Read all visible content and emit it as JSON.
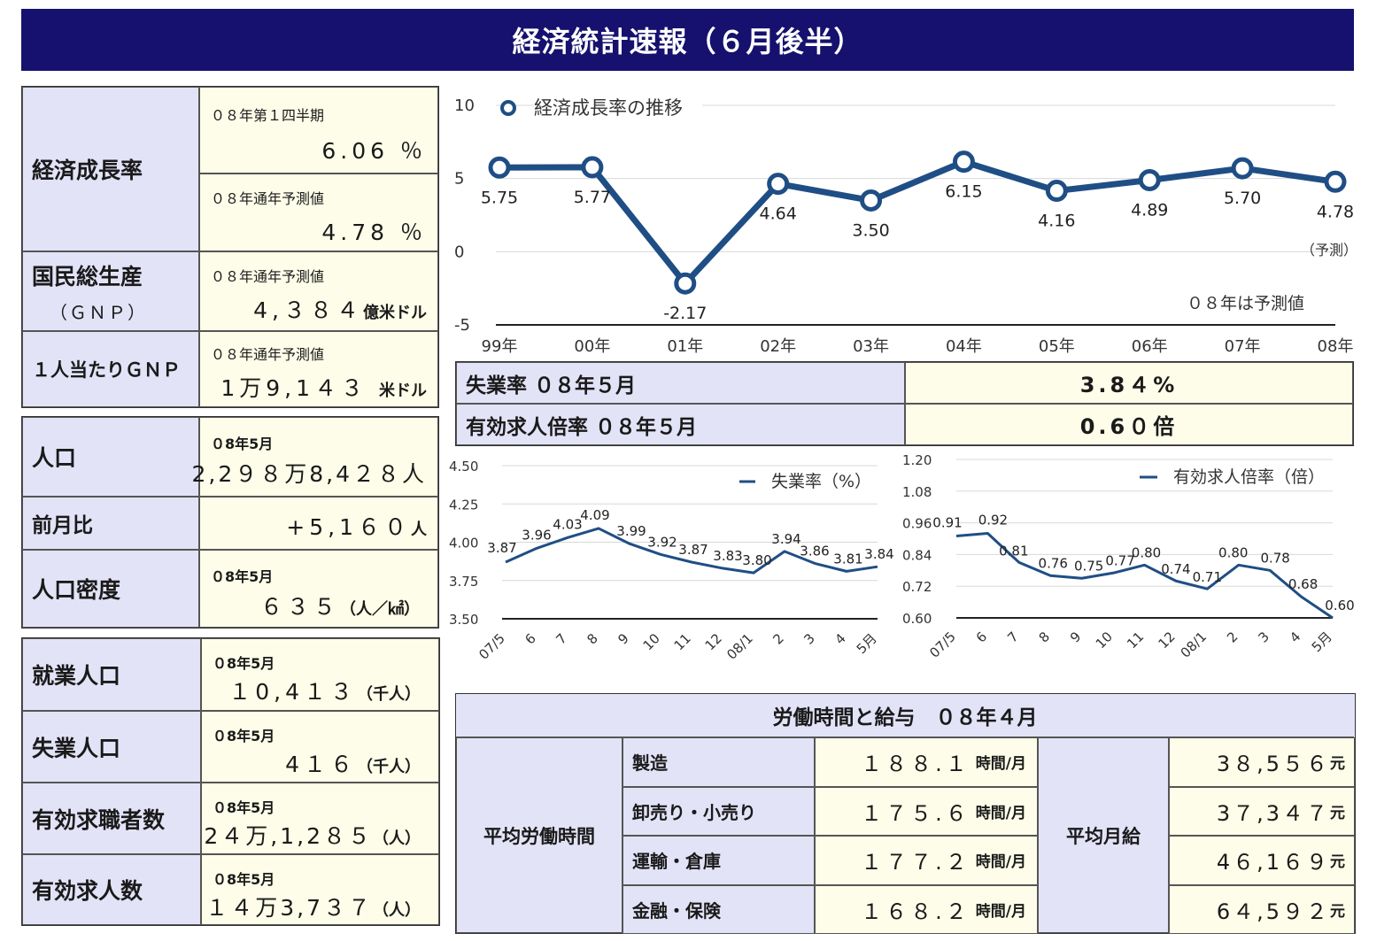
{
  "title": "経済統計速報（６月後半）",
  "gdp": {
    "label": "経済成長率",
    "q1": {
      "sub": "０８年第１四半期",
      "value": "6.06",
      "unit": "％"
    },
    "forecast": {
      "sub": "０８年通年予測値",
      "value": "4.78",
      "unit": "％"
    }
  },
  "gnp": {
    "label": "国民総生産",
    "label2": "（ＧＮＰ）",
    "sub": "０８年通年予測値",
    "value": "4,３８４",
    "unit": "億米ドル"
  },
  "gnp_pc": {
    "label": "１人当たりＧＮＰ",
    "sub": "０８年通年予測値",
    "value": "1万9,1４３",
    "unit": "米ドル"
  },
  "population": {
    "label": "人口",
    "sub": "０8年5月",
    "value": "2,2９８万8,4２８人"
  },
  "mom": {
    "label": "前月比",
    "value": "+5,1６０",
    "unit": "人"
  },
  "density": {
    "label": "人口密度",
    "sub": "０8年5月",
    "value": "６３５",
    "unit": "（人／㎢）"
  },
  "employed": {
    "label": "就業人口",
    "sub": "０8年5月",
    "value": "１0,4１３",
    "unit": "（千人）"
  },
  "unemployed": {
    "label": "失業人口",
    "sub": "０8年5月",
    "value": "4１６",
    "unit": "（千人）"
  },
  "seekers": {
    "label": "有効求職者数",
    "sub": "０8年5月",
    "value": "2４万,1,2８５",
    "unit": "（人）"
  },
  "offers": {
    "label": "有効求人数",
    "sub": "０8年5月",
    "value": "１４万3,7３７",
    "unit": "（人）"
  },
  "rates": {
    "unemp_label": "失業率 ０８年５月",
    "unemp_value": "3.8４%",
    "jobs_label": "有効求人倍率 ０８年５月",
    "jobs_value": "0.6０倍"
  },
  "wage_table": {
    "title": "労働時間と給与　０８年４月",
    "hours_label": "平均労働時間",
    "salary_label": "平均月給",
    "rows": [
      {
        "industry": "製造",
        "hours": "１８８.１",
        "hours_unit": "時間/月",
        "salary": "3８,5５６",
        "salary_unit": "元"
      },
      {
        "industry": "卸売り・小売り",
        "hours": "１７５.６",
        "hours_unit": "時間/月",
        "salary": "3７,3４７",
        "salary_unit": "元"
      },
      {
        "industry": "運輸・倉庫",
        "hours": "１７７.２",
        "hours_unit": "時間/月",
        "salary": "4６,1６９",
        "salary_unit": "元"
      },
      {
        "industry": "金融・保険",
        "hours": "１６８.２",
        "hours_unit": "時間/月",
        "salary": "6４,5９２",
        "salary_unit": "元"
      }
    ]
  },
  "chart_data": [
    {
      "type": "line",
      "legend": "経済成長率の推移",
      "categories": [
        "99年",
        "00年",
        "01年",
        "02年",
        "03年",
        "04年",
        "05年",
        "06年",
        "07年",
        "08年"
      ],
      "values": [
        5.75,
        5.77,
        -2.17,
        4.64,
        3.5,
        6.15,
        4.16,
        4.89,
        5.7,
        4.78
      ],
      "value_labels": [
        "5.75",
        "5.77",
        "-2.17",
        "4.64",
        "3.50",
        "6.15",
        "4.16",
        "4.89",
        "5.70",
        "4.78"
      ],
      "ylim": [
        -5,
        10
      ],
      "yticks": [
        "10",
        "5",
        "0",
        "-5"
      ],
      "annotation_last": "（予測）",
      "note": "０８年は予測値",
      "color": "#1f4e85",
      "grid": true
    },
    {
      "type": "line",
      "legend": "失業率（%）",
      "categories": [
        "07/5",
        "6",
        "7",
        "8",
        "9",
        "10",
        "11",
        "12",
        "08/1",
        "2",
        "3",
        "4",
        "5月"
      ],
      "values": [
        3.87,
        3.96,
        4.03,
        4.09,
        3.99,
        3.92,
        3.87,
        3.83,
        3.8,
        3.94,
        3.86,
        3.81,
        3.84
      ],
      "value_labels": [
        "3.87",
        "3.96",
        "4.03",
        "4.09",
        "3.99",
        "3.92",
        "3.87",
        "3.83",
        "3.80",
        "3.94",
        "3.86",
        "3.81",
        "3.84"
      ],
      "ylim": [
        3.5,
        4.5
      ],
      "yticks": [
        "4.50",
        "4.25",
        "4.00",
        "3.75",
        "3.50"
      ],
      "color": "#1f4e85",
      "grid": true
    },
    {
      "type": "line",
      "legend": "有効求人倍率（倍）",
      "categories": [
        "07/5",
        "6",
        "7",
        "8",
        "9",
        "10",
        "11",
        "12",
        "08/1",
        "2",
        "3",
        "4",
        "5月"
      ],
      "values": [
        0.91,
        0.92,
        0.81,
        0.76,
        0.75,
        0.77,
        0.8,
        0.74,
        0.71,
        0.8,
        0.78,
        0.68,
        0.6
      ],
      "value_labels": [
        "0.91",
        "0.92",
        "0.81",
        "0.76",
        "0.75",
        "0.77",
        "0.80",
        "0.74",
        "0.71",
        "0.80",
        "0.78",
        "0.68",
        "0.60"
      ],
      "ylim": [
        0.6,
        1.2
      ],
      "yticks": [
        "1.20",
        "1.08",
        "0.96",
        "0.84",
        "0.72",
        "0.60"
      ],
      "color": "#1f4e85",
      "grid": true
    }
  ]
}
